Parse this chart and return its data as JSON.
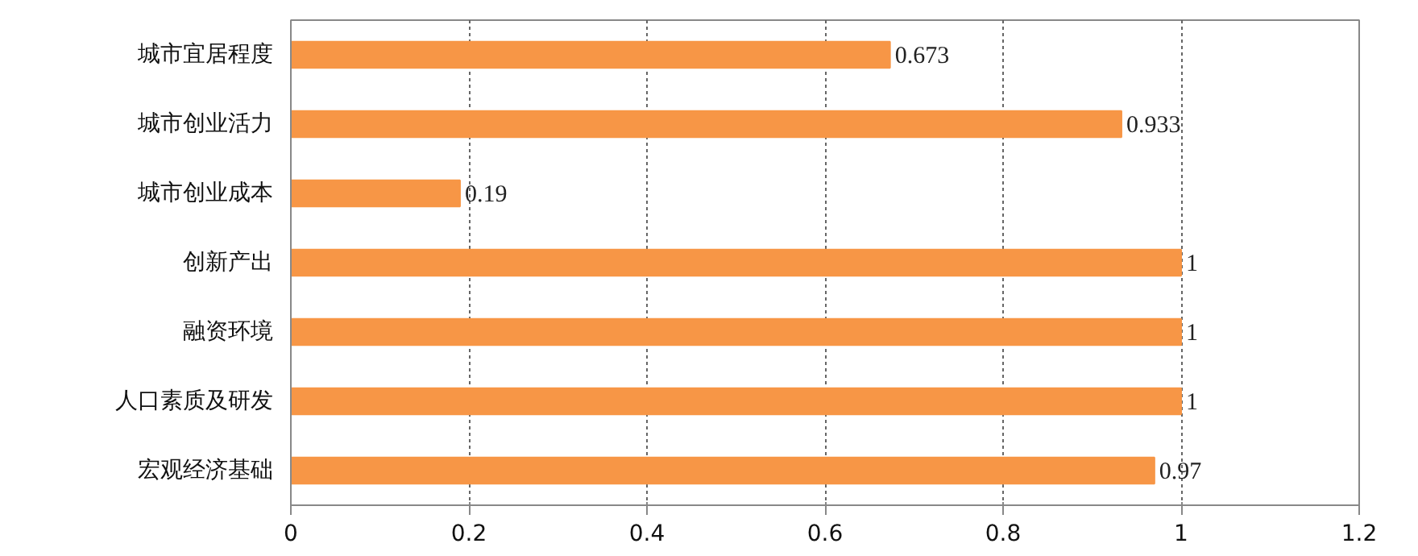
{
  "chart_data": {
    "type": "bar",
    "orientation": "horizontal",
    "categories": [
      "城市宜居程度",
      "城市创业活力",
      "城市创业成本",
      "创新产出",
      "融资环境",
      "人口素质及研发",
      "宏观经济基础"
    ],
    "values": [
      0.673,
      0.933,
      0.19,
      1,
      1,
      1,
      0.97
    ],
    "color": "#f79646",
    "xlim": [
      0,
      1.2
    ],
    "xticks": [
      0,
      0.2,
      0.4,
      0.6,
      0.8,
      1,
      1.2
    ],
    "grid": "x",
    "data_labels": true
  }
}
